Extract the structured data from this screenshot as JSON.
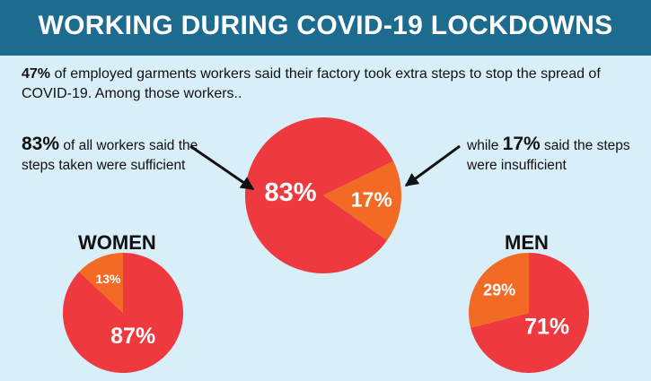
{
  "header": {
    "title": "WORKING DURING COVID-19 LOCKDOWNS"
  },
  "intro": {
    "highlight": "47%",
    "text": " of employed garments workers said their factory took extra steps to stop the spread of COVID-19. Among those workers.."
  },
  "callouts": {
    "left": {
      "highlight": "83%",
      "text": " of all workers said the steps taken were sufficient"
    },
    "right": {
      "prefix": "while ",
      "highlight": "17%",
      "text": " said the steps were insufficient"
    }
  },
  "groups": {
    "women": "WOMEN",
    "men": "MEN"
  },
  "colors": {
    "sufficient": "#ee3a3f",
    "insufficient": "#f26a24",
    "banner": "#1d6b8f",
    "background": "#d8eef8"
  },
  "chart_data": [
    {
      "type": "pie",
      "title": "",
      "categories": [
        "sufficient",
        "insufficient"
      ],
      "values": [
        83,
        17
      ],
      "labels": [
        "83%",
        "17%"
      ]
    },
    {
      "type": "pie",
      "title": "WOMEN",
      "categories": [
        "sufficient",
        "insufficient"
      ],
      "values": [
        87,
        13
      ],
      "labels": [
        "87%",
        "13%"
      ]
    },
    {
      "type": "pie",
      "title": "MEN",
      "categories": [
        "sufficient",
        "insufficient"
      ],
      "values": [
        71,
        29
      ],
      "labels": [
        "71%",
        "29%"
      ]
    }
  ]
}
